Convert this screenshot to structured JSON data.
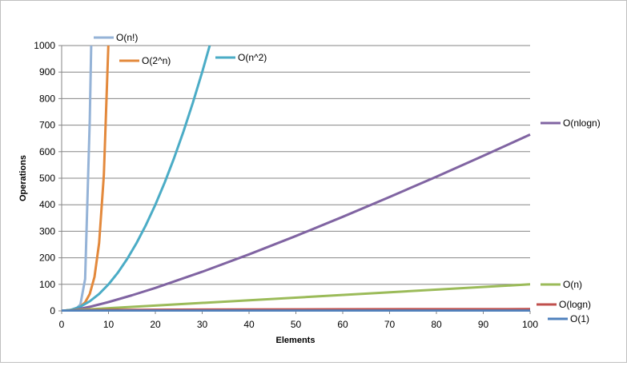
{
  "chart_data": {
    "type": "line",
    "title": "",
    "xlabel": "Elements",
    "ylabel": "Operations",
    "xlim": [
      0,
      100
    ],
    "ylim": [
      0,
      1000
    ],
    "x_ticks": [
      0,
      10,
      20,
      30,
      40,
      50,
      60,
      70,
      80,
      90,
      100
    ],
    "y_ticks": [
      0,
      100,
      200,
      300,
      400,
      500,
      600,
      700,
      800,
      900,
      1000
    ],
    "grid": "horizontal",
    "legend": "inline-right",
    "series": [
      {
        "name": "O(n!)",
        "color": "#95b3d7",
        "x": [
          1,
          2,
          3,
          4,
          5,
          6,
          6.3
        ],
        "y": [
          1,
          2,
          6,
          24,
          120,
          720,
          1000
        ]
      },
      {
        "name": "O(2^n)",
        "color": "#e3893c",
        "x": [
          1,
          2,
          3,
          4,
          5,
          6,
          7,
          8,
          9,
          9.97
        ],
        "y": [
          2,
          4,
          8,
          16,
          32,
          64,
          128,
          256,
          512,
          1000
        ]
      },
      {
        "name": "O(n^2)",
        "color": "#4bacc6",
        "x": [
          0,
          2,
          4,
          6,
          8,
          10,
          12,
          14,
          16,
          18,
          20,
          22,
          24,
          26,
          28,
          30,
          31.6
        ],
        "y": [
          0,
          4,
          16,
          36,
          64,
          100,
          144,
          196,
          256,
          324,
          400,
          484,
          576,
          676,
          784,
          900,
          1000
        ]
      },
      {
        "name": "O(nlogn)",
        "color": "#8064a2",
        "x": [
          1,
          2,
          4,
          6,
          8,
          10,
          15,
          20,
          30,
          40,
          50,
          60,
          70,
          80,
          90,
          100
        ],
        "y": [
          0,
          2,
          8,
          15.5,
          24,
          33.2,
          58.6,
          86.4,
          147.2,
          212.9,
          282.2,
          354.4,
          429.1,
          505.8,
          584.3,
          664.4
        ]
      },
      {
        "name": "O(n)",
        "color": "#9bbb59",
        "x": [
          0,
          100
        ],
        "y": [
          0,
          100
        ]
      },
      {
        "name": "O(logn)",
        "color": "#c0504d",
        "x": [
          1,
          2,
          5,
          10,
          20,
          40,
          60,
          80,
          100
        ],
        "y": [
          0,
          1,
          2.3,
          3.3,
          4.3,
          5.3,
          5.9,
          6.3,
          6.6
        ]
      },
      {
        "name": "O(1)",
        "color": "#4f81bd",
        "x": [
          0,
          100
        ],
        "y": [
          1,
          1
        ]
      }
    ]
  }
}
